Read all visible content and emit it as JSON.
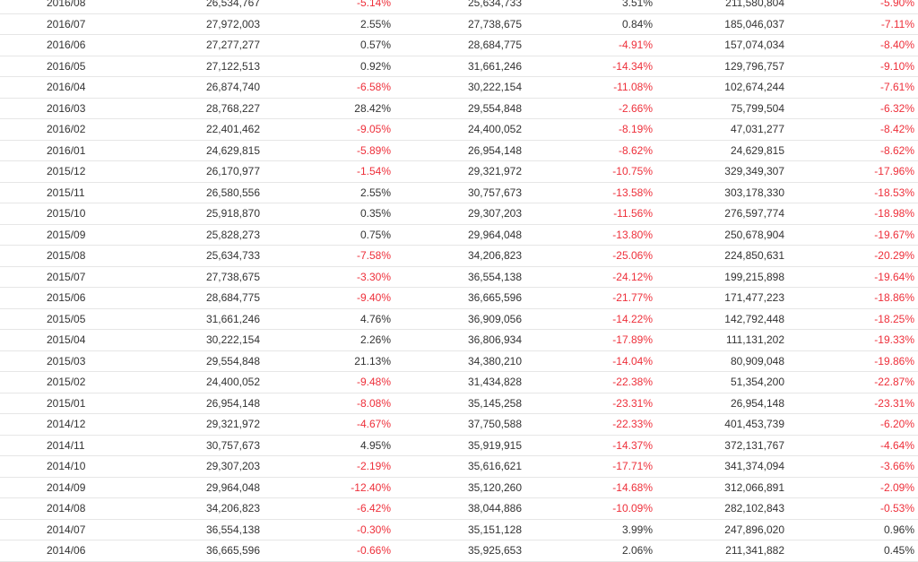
{
  "colors": {
    "text": "#333333",
    "negative": "#ee2f3a",
    "row_border": "#e6e6e6"
  },
  "rows": [
    [
      "2016/08",
      "26,534,767",
      "-5.14%",
      "25,634,733",
      "3.51%",
      "211,580,804",
      "-5.90%"
    ],
    [
      "2016/07",
      "27,972,003",
      "2.55%",
      "27,738,675",
      "0.84%",
      "185,046,037",
      "-7.11%"
    ],
    [
      "2016/06",
      "27,277,277",
      "0.57%",
      "28,684,775",
      "-4.91%",
      "157,074,034",
      "-8.40%"
    ],
    [
      "2016/05",
      "27,122,513",
      "0.92%",
      "31,661,246",
      "-14.34%",
      "129,796,757",
      "-9.10%"
    ],
    [
      "2016/04",
      "26,874,740",
      "-6.58%",
      "30,222,154",
      "-11.08%",
      "102,674,244",
      "-7.61%"
    ],
    [
      "2016/03",
      "28,768,227",
      "28.42%",
      "29,554,848",
      "-2.66%",
      "75,799,504",
      "-6.32%"
    ],
    [
      "2016/02",
      "22,401,462",
      "-9.05%",
      "24,400,052",
      "-8.19%",
      "47,031,277",
      "-8.42%"
    ],
    [
      "2016/01",
      "24,629,815",
      "-5.89%",
      "26,954,148",
      "-8.62%",
      "24,629,815",
      "-8.62%"
    ],
    [
      "2015/12",
      "26,170,977",
      "-1.54%",
      "29,321,972",
      "-10.75%",
      "329,349,307",
      "-17.96%"
    ],
    [
      "2015/11",
      "26,580,556",
      "2.55%",
      "30,757,673",
      "-13.58%",
      "303,178,330",
      "-18.53%"
    ],
    [
      "2015/10",
      "25,918,870",
      "0.35%",
      "29,307,203",
      "-11.56%",
      "276,597,774",
      "-18.98%"
    ],
    [
      "2015/09",
      "25,828,273",
      "0.75%",
      "29,964,048",
      "-13.80%",
      "250,678,904",
      "-19.67%"
    ],
    [
      "2015/08",
      "25,634,733",
      "-7.58%",
      "34,206,823",
      "-25.06%",
      "224,850,631",
      "-20.29%"
    ],
    [
      "2015/07",
      "27,738,675",
      "-3.30%",
      "36,554,138",
      "-24.12%",
      "199,215,898",
      "-19.64%"
    ],
    [
      "2015/06",
      "28,684,775",
      "-9.40%",
      "36,665,596",
      "-21.77%",
      "171,477,223",
      "-18.86%"
    ],
    [
      "2015/05",
      "31,661,246",
      "4.76%",
      "36,909,056",
      "-14.22%",
      "142,792,448",
      "-18.25%"
    ],
    [
      "2015/04",
      "30,222,154",
      "2.26%",
      "36,806,934",
      "-17.89%",
      "111,131,202",
      "-19.33%"
    ],
    [
      "2015/03",
      "29,554,848",
      "21.13%",
      "34,380,210",
      "-14.04%",
      "80,909,048",
      "-19.86%"
    ],
    [
      "2015/02",
      "24,400,052",
      "-9.48%",
      "31,434,828",
      "-22.38%",
      "51,354,200",
      "-22.87%"
    ],
    [
      "2015/01",
      "26,954,148",
      "-8.08%",
      "35,145,258",
      "-23.31%",
      "26,954,148",
      "-23.31%"
    ],
    [
      "2014/12",
      "29,321,972",
      "-4.67%",
      "37,750,588",
      "-22.33%",
      "401,453,739",
      "-6.20%"
    ],
    [
      "2014/11",
      "30,757,673",
      "4.95%",
      "35,919,915",
      "-14.37%",
      "372,131,767",
      "-4.64%"
    ],
    [
      "2014/10",
      "29,307,203",
      "-2.19%",
      "35,616,621",
      "-17.71%",
      "341,374,094",
      "-3.66%"
    ],
    [
      "2014/09",
      "29,964,048",
      "-12.40%",
      "35,120,260",
      "-14.68%",
      "312,066,891",
      "-2.09%"
    ],
    [
      "2014/08",
      "34,206,823",
      "-6.42%",
      "38,044,886",
      "-10.09%",
      "282,102,843",
      "-0.53%"
    ],
    [
      "2014/07",
      "36,554,138",
      "-0.30%",
      "35,151,128",
      "3.99%",
      "247,896,020",
      "0.96%"
    ],
    [
      "2014/06",
      "36,665,596",
      "-0.66%",
      "35,925,653",
      "2.06%",
      "211,341,882",
      "0.45%"
    ]
  ]
}
